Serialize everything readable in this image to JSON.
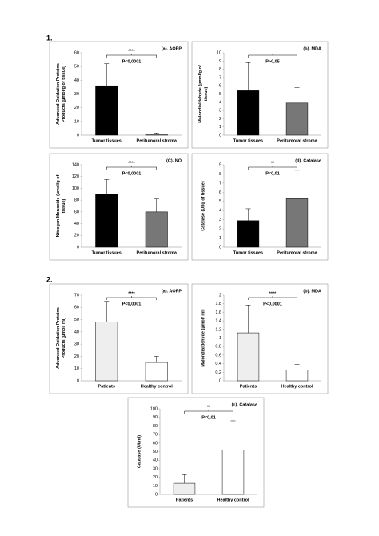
{
  "sections": [
    "1.",
    "2."
  ],
  "chart_data": [
    {
      "type": "bar",
      "label": "(a). AOPP",
      "ylabel": [
        "Advanced Oxidation Proteins",
        "Products (µmol/g of tissue)"
      ],
      "categories": [
        "Tumor tissues",
        "Peritumoral stroma"
      ],
      "values": [
        36,
        1
      ],
      "errors": [
        16,
        0.5
      ],
      "colors": [
        "#000000",
        "#777777"
      ],
      "ylim": [
        0,
        60
      ],
      "yticks": [
        0,
        10,
        20,
        30,
        40,
        50,
        60
      ],
      "significance": "****",
      "p_text": "P<0,0001"
    },
    {
      "type": "bar",
      "label": "(b). MDA",
      "ylabel": [
        "Malondialdehyde (µmol/g of",
        "tissue)"
      ],
      "categories": [
        "Tumor tissues",
        "Peritumoral stroma"
      ],
      "values": [
        5.4,
        3.9
      ],
      "errors": [
        3.4,
        1.9
      ],
      "colors": [
        "#000000",
        "#777777"
      ],
      "ylim": [
        0,
        10
      ],
      "yticks": [
        0,
        1,
        2,
        3,
        4,
        5,
        6,
        7,
        8,
        9,
        10
      ],
      "p_text": "P>0,05"
    },
    {
      "type": "bar",
      "label": "(C). NO",
      "ylabel": [
        "Nitrogen Monoxide (µmol/g of",
        "tissue)"
      ],
      "categories": [
        "Tumor tissues",
        "Peritumoral stroma"
      ],
      "values": [
        90,
        60
      ],
      "errors": [
        25,
        22
      ],
      "colors": [
        "#000000",
        "#777777"
      ],
      "ylim": [
        0,
        140
      ],
      "yticks": [
        0,
        20,
        40,
        60,
        80,
        100,
        120,
        140
      ],
      "significance": "****",
      "p_text": "P<0,0001"
    },
    {
      "type": "bar",
      "label": "(d). Catalase",
      "ylabel": [
        "Catalase (UI/g of tissue)"
      ],
      "categories": [
        "Tumor tissues",
        "Peritumoral stroma"
      ],
      "values": [
        2.9,
        5.3
      ],
      "errors": [
        1.3,
        3.1
      ],
      "colors": [
        "#000000",
        "#777777"
      ],
      "ylim": [
        0,
        9
      ],
      "yticks": [
        0,
        1,
        2,
        3,
        4,
        5,
        6,
        7,
        8,
        9
      ],
      "significance": "**",
      "p_text": "P<0,01"
    },
    {
      "type": "bar",
      "label": "(a). AOPP",
      "ylabel": [
        "Advanced Oxidation Proteins",
        "Products (µmol/ ml)"
      ],
      "categories": [
        "Patients",
        "Healthy control"
      ],
      "values": [
        48,
        15
      ],
      "errors": [
        17,
        5
      ],
      "colors": [
        "#eeeeee",
        "#ffffff"
      ],
      "ylim": [
        0,
        70
      ],
      "yticks": [
        0,
        10,
        20,
        30,
        40,
        50,
        60,
        70
      ],
      "significance": "****",
      "p_text": "P<0,0001"
    },
    {
      "type": "bar",
      "label": "(b). MDA",
      "ylabel": [
        "Malondialdehyde (µmol/ ml)"
      ],
      "categories": [
        "Patients",
        "Healthy control"
      ],
      "values": [
        1.12,
        0.25
      ],
      "errors": [
        0.65,
        0.13
      ],
      "colors": [
        "#eeeeee",
        "#ffffff"
      ],
      "ylim": [
        0,
        2
      ],
      "yticks": [
        0,
        0.2,
        0.4,
        0.6,
        0.8,
        1,
        1.2,
        1.4,
        1.6,
        1.8,
        2
      ],
      "significance": "****",
      "p_text": "P<0,0001"
    },
    {
      "type": "bar",
      "label": "(c). Catalase",
      "ylabel": [
        "Catalase (UI/ml)"
      ],
      "categories": [
        "Patients",
        "Healthy control"
      ],
      "values": [
        13,
        52
      ],
      "errors": [
        10,
        34
      ],
      "colors": [
        "#eeeeee",
        "#ffffff"
      ],
      "ylim": [
        0,
        100
      ],
      "yticks": [
        0,
        10,
        20,
        30,
        40,
        50,
        60,
        70,
        80,
        90,
        100
      ],
      "significance": "**",
      "p_text": "P<0,01"
    }
  ]
}
